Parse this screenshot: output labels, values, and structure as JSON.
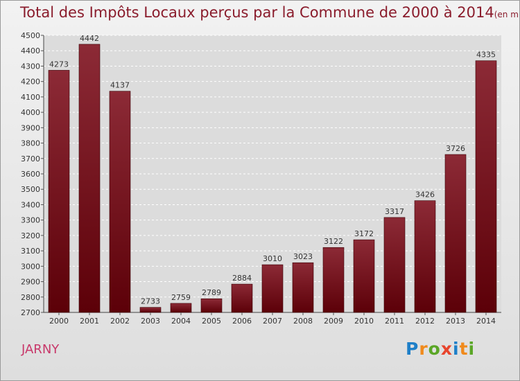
{
  "header": {
    "title": "Total des Impôts Locaux perçus par la Commune de 2000 à 2014",
    "unit": "(en milliers d'€)"
  },
  "commune": "JARNY",
  "logo": {
    "letters": [
      {
        "char": "P",
        "color": "#1e7fc8"
      },
      {
        "char": "r",
        "color": "#f08a1c"
      },
      {
        "char": "o",
        "color": "#5aa626"
      },
      {
        "char": "x",
        "color": "#e8442c"
      },
      {
        "char": "i",
        "color": "#1e7fc8"
      },
      {
        "char": "t",
        "color": "#f08a1c"
      },
      {
        "char": "i",
        "color": "#5aa626"
      }
    ]
  },
  "chart_data": {
    "type": "bar",
    "title": "Total des Impôts Locaux perçus par la Commune de 2000 à 2014",
    "xlabel": "",
    "ylabel": "",
    "categories": [
      "2000",
      "2001",
      "2002",
      "2003",
      "2004",
      "2005",
      "2006",
      "2007",
      "2008",
      "2009",
      "2010",
      "2011",
      "2012",
      "2013",
      "2014"
    ],
    "values": [
      4273,
      4442,
      4137,
      2733,
      2759,
      2789,
      2884,
      3010,
      3023,
      3122,
      3172,
      3317,
      3426,
      3726,
      4335
    ],
    "ylim": [
      2700,
      4500
    ],
    "yticks": [
      2700,
      2800,
      2900,
      3000,
      3100,
      3200,
      3300,
      3400,
      3500,
      3600,
      3700,
      3800,
      3900,
      4000,
      4100,
      4200,
      4300,
      4400,
      4500
    ],
    "grid": true,
    "bar_color": "#7a1020"
  }
}
